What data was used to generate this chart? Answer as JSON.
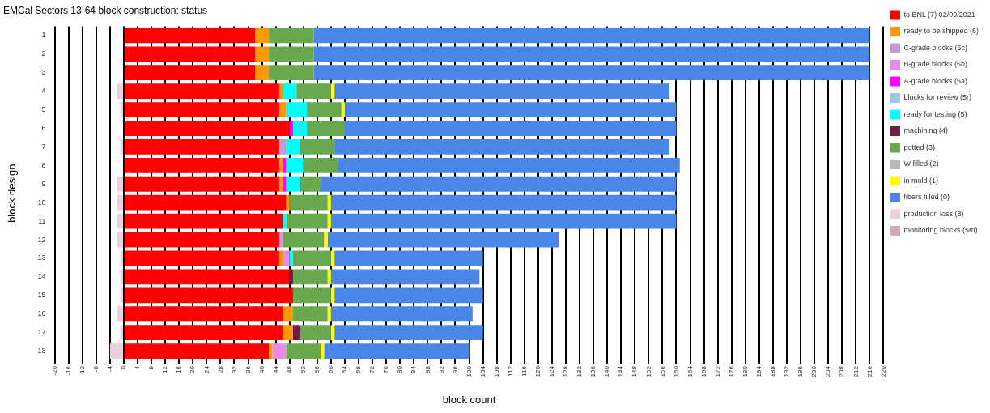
{
  "chart_data": {
    "type": "bar",
    "orientation": "horizontal",
    "stacked": true,
    "title": "EMCal Sectors 13-64 block construction: status",
    "xlabel": "block count",
    "ylabel": "block design",
    "categories": [
      "1",
      "2",
      "3",
      "4",
      "5",
      "6",
      "7",
      "8",
      "9",
      "10",
      "11",
      "12",
      "13",
      "14",
      "15",
      "16",
      "17",
      "18"
    ],
    "series": [
      {
        "name": "to BNL (7) 02/09/2021",
        "color": "#ff0000",
        "values": [
          38,
          38,
          38,
          45,
          45,
          48,
          45,
          45,
          45,
          47,
          46,
          45,
          45,
          48,
          49,
          46,
          46,
          42
        ]
      },
      {
        "name": "ready to be shipped (6)",
        "color": "#ff9900",
        "values": [
          4,
          4,
          4,
          1,
          2,
          0,
          0,
          1,
          1,
          1,
          0,
          0,
          1,
          0,
          0,
          3,
          3,
          1
        ]
      },
      {
        "name": "C-grade blocks (5c)",
        "color": "#c39bd3",
        "values": [
          0,
          0,
          0,
          0,
          0,
          0,
          2,
          0,
          0,
          0,
          0,
          0,
          0,
          0,
          0,
          0,
          0,
          0
        ]
      },
      {
        "name": "B-grade blocks (5b)",
        "color": "#e68ce6",
        "values": [
          0,
          0,
          0,
          0,
          0,
          0,
          0,
          0,
          0,
          0,
          0,
          1,
          2,
          0,
          0,
          0,
          0,
          4
        ]
      },
      {
        "name": "A-grade blocks (5a)",
        "color": "#ff00ff",
        "values": [
          0,
          0,
          0,
          0,
          0,
          1,
          0,
          1,
          1,
          0,
          0,
          0,
          0,
          0,
          0,
          0,
          0,
          0
        ]
      },
      {
        "name": "blocks for review (5r)",
        "color": "#9fc5e8",
        "values": [
          0,
          0,
          0,
          0,
          0,
          0,
          0,
          0,
          0,
          0,
          0,
          0,
          0,
          0,
          0,
          0,
          0,
          0
        ]
      },
      {
        "name": "ready for testing (5)",
        "color": "#00ffff",
        "values": [
          0,
          0,
          0,
          4,
          6,
          4,
          4,
          5,
          4,
          0,
          1,
          0,
          1,
          0,
          0,
          0,
          0,
          0
        ]
      },
      {
        "name": "machining (4)",
        "color": "#741b47",
        "values": [
          0,
          0,
          0,
          0,
          0,
          0,
          0,
          0,
          0,
          0,
          0,
          0,
          0,
          1,
          0,
          0,
          2,
          0
        ]
      },
      {
        "name": "potted (3)",
        "color": "#6aa84f",
        "values": [
          13,
          13,
          13,
          10,
          10,
          11,
          10,
          10,
          6,
          11,
          12,
          12,
          11,
          10,
          11,
          10,
          9,
          10
        ]
      },
      {
        "name": "W filled (2)",
        "color": "#b7b7b7",
        "values": [
          0,
          0,
          0,
          0,
          0,
          0,
          0,
          0,
          0,
          0,
          0,
          0,
          0,
          0,
          0,
          0,
          0,
          0
        ]
      },
      {
        "name": "in mold (1)",
        "color": "#ffff00",
        "values": [
          0,
          0,
          0,
          1,
          1,
          0,
          0,
          0,
          0,
          1,
          1,
          1,
          1,
          1,
          1,
          1,
          1,
          1
        ]
      },
      {
        "name": "fibers filled (0)",
        "color": "#4a86e8",
        "values": [
          161,
          161,
          161,
          97,
          96,
          96,
          97,
          99,
          103,
          100,
          100,
          67,
          43,
          43,
          43,
          41,
          43,
          42
        ]
      },
      {
        "name": "production loss (8)",
        "color": "#ead1dc",
        "values": [
          0,
          0,
          0,
          -2,
          -1,
          0,
          -1,
          0,
          -2,
          -2,
          -2,
          -2,
          -1,
          -1,
          -1,
          -2,
          -1,
          -4
        ]
      },
      {
        "name": "monitoring blocks (5m)",
        "color": "#d5a6bd",
        "values": [
          0,
          0,
          0,
          0,
          0,
          0,
          0,
          0,
          0,
          0,
          0,
          0,
          0,
          0,
          0,
          0,
          0,
          0
        ]
      }
    ],
    "xlim": [
      -20,
      220
    ],
    "xticks": [
      -20,
      -16,
      -12,
      -8,
      -4,
      0,
      4,
      8,
      12,
      16,
      20,
      24,
      28,
      32,
      36,
      40,
      44,
      48,
      52,
      56,
      60,
      64,
      68,
      72,
      76,
      80,
      84,
      88,
      92,
      96,
      100,
      104,
      108,
      112,
      116,
      120,
      124,
      128,
      132,
      136,
      140,
      144,
      148,
      152,
      156,
      160,
      164,
      168,
      172,
      176,
      180,
      184,
      188,
      192,
      196,
      200,
      204,
      208,
      212,
      216,
      220
    ],
    "grid": "x",
    "legend": "right"
  }
}
